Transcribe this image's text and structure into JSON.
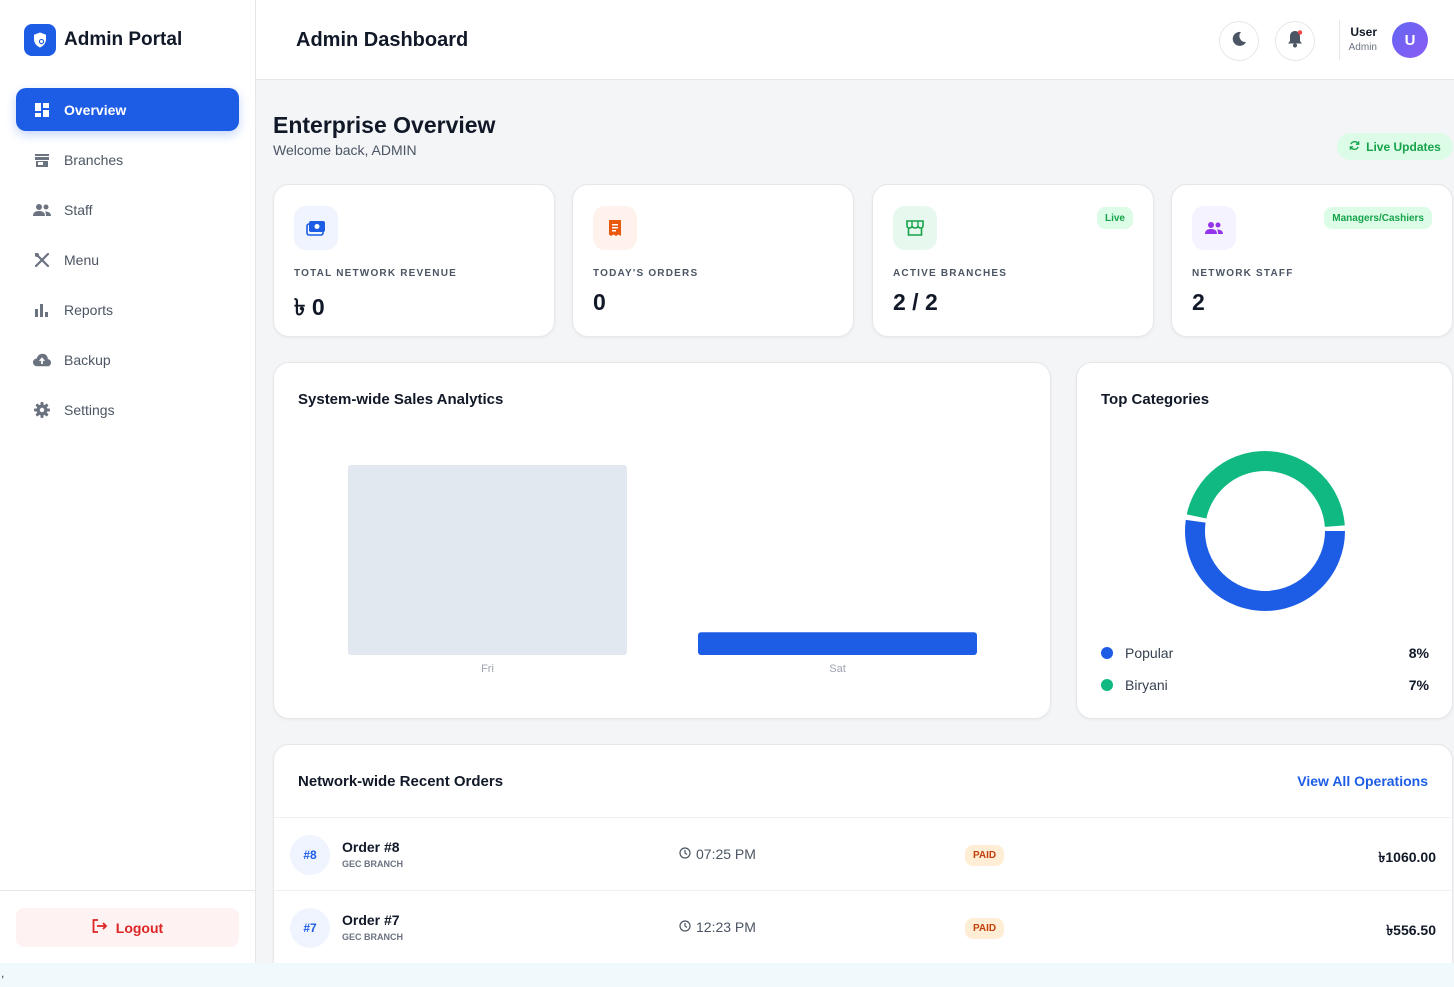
{
  "brand": {
    "title": "Admin Portal"
  },
  "nav": {
    "items": [
      {
        "label": "Overview",
        "icon": "dashboard-icon"
      },
      {
        "label": "Branches",
        "icon": "store-icon"
      },
      {
        "label": "Staff",
        "icon": "people-icon"
      },
      {
        "label": "Menu",
        "icon": "utensils-icon"
      },
      {
        "label": "Reports",
        "icon": "bar-chart-icon"
      },
      {
        "label": "Backup",
        "icon": "cloud-upload-icon"
      },
      {
        "label": "Settings",
        "icon": "gear-icon"
      }
    ],
    "logout_label": "Logout"
  },
  "header": {
    "title": "Admin Dashboard",
    "user_name": "User",
    "user_role": "Admin",
    "avatar_initial": "U"
  },
  "page": {
    "title": "Enterprise Overview",
    "subtitle": "Welcome back, ADMIN",
    "live_label": "Live Updates"
  },
  "stats": [
    {
      "label": "TOTAL NETWORK REVENUE",
      "value": "৳ 0",
      "icon": "wallet-icon",
      "badge": ""
    },
    {
      "label": "TODAY'S ORDERS",
      "value": "0",
      "icon": "receipt-icon",
      "badge": ""
    },
    {
      "label": "ACTIVE BRANCHES",
      "value": "2 / 2",
      "icon": "store-icon",
      "badge": "Live"
    },
    {
      "label": "NETWORK STAFF",
      "value": "2",
      "icon": "people-icon",
      "badge": "Managers/Cashiers"
    }
  ],
  "sales_chart": {
    "title": "System-wide Sales Analytics"
  },
  "chart_data": {
    "type": "bar",
    "categories": [
      "Fri",
      "Sat"
    ],
    "values": [
      100,
      12
    ],
    "colors": [
      "#e2e8f0",
      "#1d5de6"
    ],
    "ylim": [
      0,
      100
    ],
    "grid": false
  },
  "categories_chart": {
    "title": "Top Categories",
    "items": [
      {
        "name": "Popular",
        "value": "8%",
        "pct": 8,
        "color": "#1d5de6"
      },
      {
        "name": "Biryani",
        "value": "7%",
        "pct": 7,
        "color": "#10b981"
      }
    ]
  },
  "orders": {
    "title": "Network-wide Recent Orders",
    "view_all": "View All Operations",
    "rows": [
      {
        "badge": "#8",
        "name": "Order #8",
        "branch": "GEC BRANCH",
        "time": "07:25 PM",
        "status": "PAID",
        "amount": "৳1060.00"
      },
      {
        "badge": "#7",
        "name": "Order #7",
        "branch": "GEC BRANCH",
        "time": "12:23 PM",
        "status": "PAID",
        "amount": "৳556.50"
      }
    ]
  },
  "footer_char": ","
}
